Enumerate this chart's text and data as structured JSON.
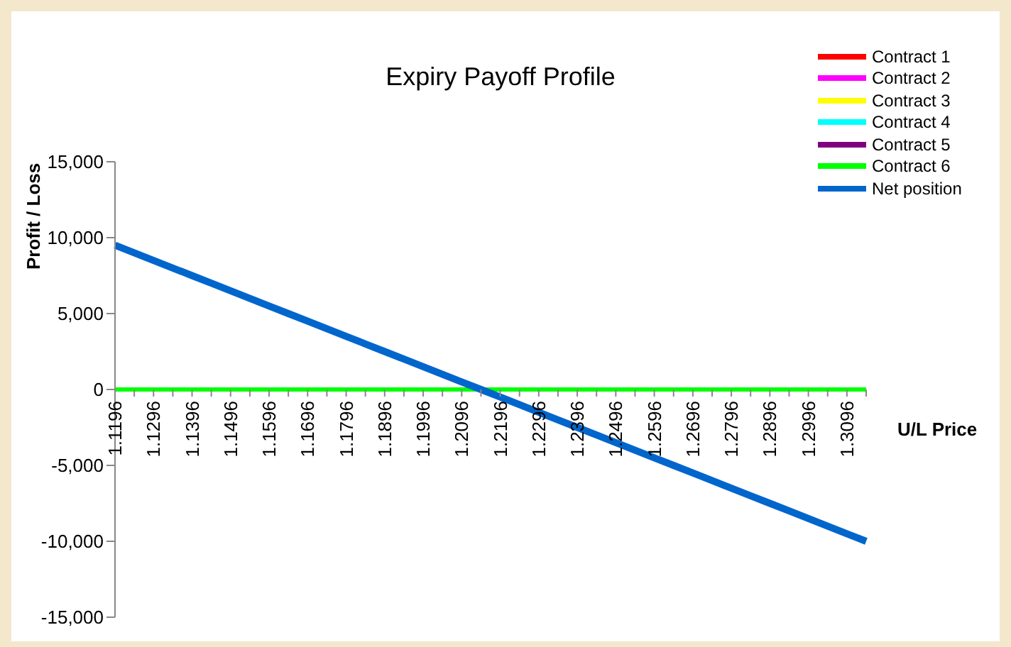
{
  "chart_data": {
    "type": "line",
    "title": "Expiry Payoff Profile",
    "xlabel": "U/L Price",
    "ylabel": "Profit / Loss",
    "categories": [
      "1.1196",
      null,
      "1.1296",
      null,
      "1.1396",
      null,
      "1.1496",
      null,
      "1.1596",
      null,
      "1.1696",
      null,
      "1.1796",
      null,
      "1.1896",
      null,
      "1.1996",
      null,
      "1.2096",
      null,
      "1.2196",
      null,
      "1.2296",
      null,
      "1.2396",
      null,
      "1.2496",
      null,
      "1.2596",
      null,
      "1.2696",
      null,
      "1.2796",
      null,
      "1.2896",
      null,
      "1.2996",
      null,
      "1.3096",
      null
    ],
    "series": [
      {
        "name": "Contract 1",
        "color": "#ff0000",
        "values": [
          null,
          null,
          null,
          null,
          null,
          null,
          null,
          null,
          null,
          null,
          null,
          null,
          null,
          null,
          null,
          null,
          null,
          null,
          null,
          null,
          null,
          null,
          null,
          null,
          null,
          null,
          null,
          null,
          null,
          null,
          null,
          null,
          null,
          null,
          null,
          null,
          null,
          null,
          null,
          null
        ]
      },
      {
        "name": "Contract 2",
        "color": "#ff00ff",
        "values": [
          null,
          null,
          null,
          null,
          null,
          null,
          null,
          null,
          null,
          null,
          null,
          null,
          null,
          null,
          null,
          null,
          null,
          null,
          null,
          null,
          null,
          null,
          null,
          null,
          null,
          null,
          null,
          null,
          null,
          null,
          null,
          null,
          null,
          null,
          null,
          null,
          null,
          null,
          null,
          null
        ]
      },
      {
        "name": "Contract 3",
        "color": "#ffff00",
        "values": [
          null,
          null,
          null,
          null,
          null,
          null,
          null,
          null,
          null,
          null,
          null,
          null,
          null,
          null,
          null,
          null,
          null,
          null,
          null,
          null,
          null,
          null,
          null,
          null,
          null,
          null,
          null,
          null,
          null,
          null,
          null,
          null,
          null,
          null,
          null,
          null,
          null,
          null,
          null,
          null
        ]
      },
      {
        "name": "Contract 4",
        "color": "#00ffff",
        "values": [
          null,
          null,
          null,
          null,
          null,
          null,
          null,
          null,
          null,
          null,
          null,
          null,
          null,
          null,
          null,
          null,
          null,
          null,
          null,
          null,
          null,
          null,
          null,
          null,
          null,
          null,
          null,
          null,
          null,
          null,
          null,
          null,
          null,
          null,
          null,
          null,
          null,
          null,
          null,
          null
        ]
      },
      {
        "name": "Contract 5",
        "color": "#800080",
        "values": [
          null,
          null,
          null,
          null,
          null,
          null,
          null,
          null,
          null,
          null,
          null,
          null,
          null,
          null,
          null,
          null,
          null,
          null,
          null,
          null,
          null,
          null,
          null,
          null,
          null,
          null,
          null,
          null,
          null,
          null,
          null,
          null,
          null,
          null,
          null,
          null,
          null,
          null,
          null,
          null
        ]
      },
      {
        "name": "Contract 6",
        "color": "#00ff00",
        "values": [
          0,
          0,
          0,
          0,
          0,
          0,
          0,
          0,
          0,
          0,
          0,
          0,
          0,
          0,
          0,
          0,
          0,
          0,
          0,
          0,
          0,
          0,
          0,
          0,
          0,
          0,
          0,
          0,
          0,
          0,
          0,
          0,
          0,
          0,
          0,
          0,
          0,
          0,
          0,
          0
        ]
      },
      {
        "name": "Net position",
        "color": "#0066cc",
        "values": [
          9500,
          9000,
          8500,
          8000,
          7500,
          7000,
          6500,
          6000,
          5500,
          5000,
          4500,
          4000,
          3500,
          3000,
          2500,
          2000,
          1500,
          1000,
          500,
          0,
          -500,
          -1000,
          -1500,
          -2000,
          -2500,
          -3000,
          -3500,
          -4000,
          -4500,
          -5000,
          -5500,
          -6000,
          -6500,
          -7000,
          -7500,
          -8000,
          -8500,
          -9000,
          -9500,
          -10000
        ]
      }
    ],
    "ylim": [
      -15000,
      15000
    ],
    "yticks": [
      {
        "value": -15000,
        "label": "-15,000"
      },
      {
        "value": -10000,
        "label": "-10,000"
      },
      {
        "value": -5000,
        "label": "-5,000"
      },
      0,
      {
        "value": 5000,
        "label": "5,000"
      },
      {
        "value": 10000,
        "label": "10,000"
      },
      {
        "value": 15000,
        "label": "15,000"
      }
    ],
    "legend": "top right",
    "marker": "none",
    "line_style": "solid"
  }
}
